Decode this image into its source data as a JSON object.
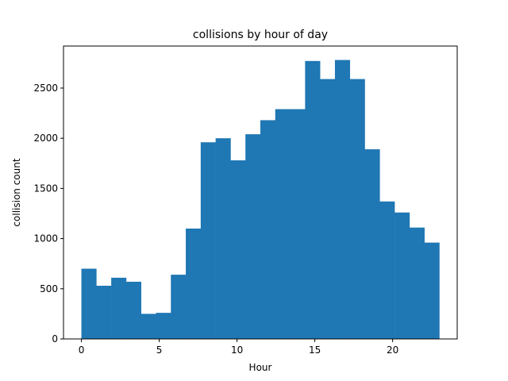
{
  "chart_data": {
    "type": "bar",
    "title": "collisions by hour of day",
    "xlabel": "Hour",
    "ylabel": "collision count",
    "bar_color": "#1f77b4",
    "bin_edges": [
      0,
      0.958,
      1.917,
      2.875,
      3.833,
      4.792,
      5.75,
      6.708,
      7.667,
      8.625,
      9.583,
      10.542,
      11.5,
      12.458,
      13.417,
      14.375,
      15.333,
      16.292,
      17.25,
      18.208,
      19.167,
      20.125,
      21.083,
      22.042,
      23.0
    ],
    "values": [
      700,
      530,
      610,
      570,
      250,
      260,
      640,
      1100,
      1960,
      2000,
      1780,
      2040,
      2180,
      2290,
      2290,
      2770,
      2590,
      2780,
      2590,
      1890,
      1370,
      1260,
      1110,
      960
    ],
    "xlim": [
      -1.15,
      24.15
    ],
    "ylim": [
      0,
      2919
    ],
    "xticks": [
      0,
      5,
      10,
      15,
      20
    ],
    "xtick_labels": [
      "0",
      "5",
      "10",
      "15",
      "20"
    ],
    "yticks": [
      0,
      500,
      1000,
      1500,
      2000,
      2500
    ],
    "ytick_labels": [
      "0",
      "500",
      "1000",
      "1500",
      "2000",
      "2500"
    ],
    "grid": false,
    "legend": "none"
  }
}
